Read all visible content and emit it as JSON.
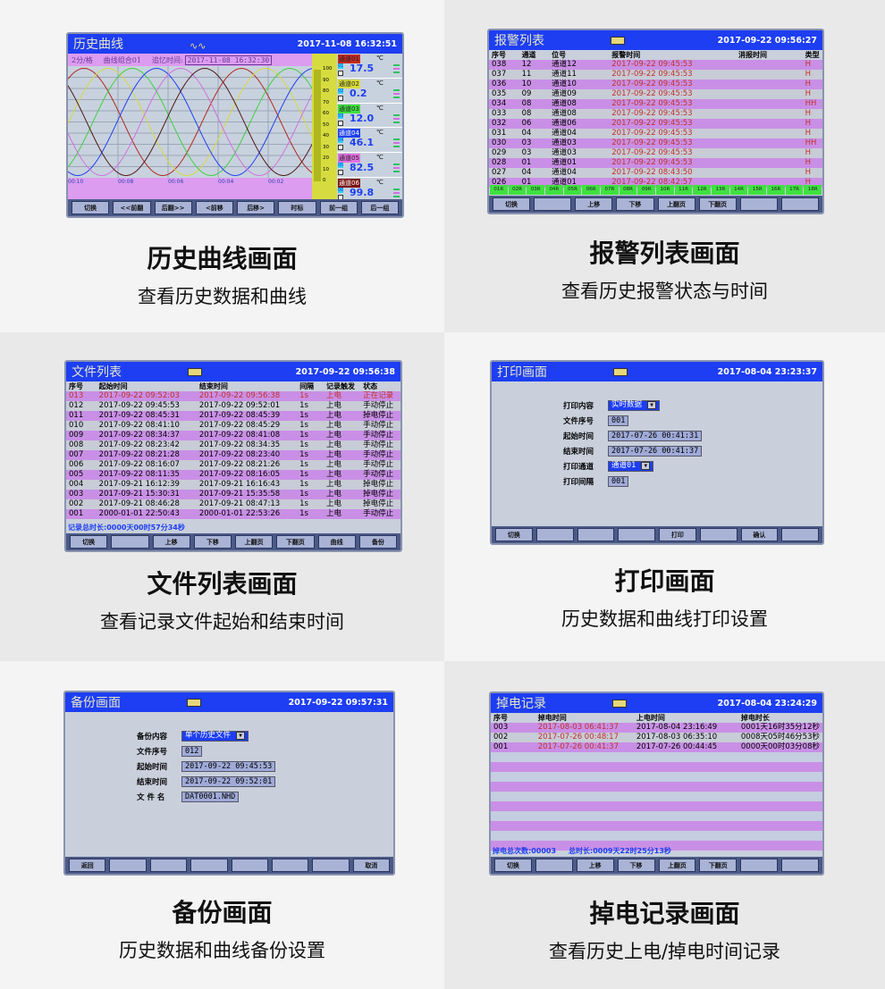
{
  "colors": {
    "header": "#1d3ef2",
    "row_purple": "#c98fe6",
    "row_gray": "#c8ccd6",
    "alarm_text": "#c0302a"
  },
  "panels": {
    "history": {
      "title": "历史曲线",
      "datetime": "2017-11-08 16:32:51",
      "scale": "2分/格",
      "group": "曲线组合01",
      "recall_label": "追忆时间:",
      "recall_time": "2017-11-08 16:32:30",
      "x_ticks": [
        "00:10",
        "00:08",
        "00:06",
        "00:04",
        "00:02"
      ],
      "y_ticks": [
        "100",
        "90",
        "80",
        "70",
        "60",
        "50",
        "40",
        "30",
        "20",
        "10",
        "0"
      ],
      "channels": [
        {
          "name": "通道01",
          "id": "01",
          "value": "17.5",
          "unit": "℃",
          "color": "#c42a20"
        },
        {
          "name": "通道02",
          "id": "02",
          "value": "0.2",
          "unit": "℃",
          "color": "#d8dc3c"
        },
        {
          "name": "通道03",
          "id": "03",
          "value": "12.0",
          "unit": "℃",
          "color": "#3fe03f"
        },
        {
          "name": "通道04",
          "id": "04",
          "value": "46.1",
          "unit": "℃",
          "color": "#2040f0"
        },
        {
          "name": "通道05",
          "id": "05",
          "value": "82.5",
          "unit": "℃",
          "color": "#e070e0"
        },
        {
          "name": "通道06",
          "id": "06",
          "value": "99.8",
          "unit": "℃",
          "color": "#7a1410"
        }
      ],
      "curve_colors": [
        "#b02a20",
        "#d8d840",
        "#40d040",
        "#2040f0",
        "#d070e0",
        "#501818"
      ],
      "buttons": [
        "切换",
        "<<前翻",
        "后翻>>",
        "<前移",
        "后移>",
        "时标",
        "前一组",
        "后一组"
      ],
      "caption": "历史曲线画面",
      "subcaption": "查看历史数据和曲线"
    },
    "alarm": {
      "title": "报警列表",
      "datetime": "2017-09-22 09:56:27",
      "headers": [
        "序号",
        "通道",
        "位号",
        "报警时间",
        "消报时间",
        "类型"
      ],
      "rows": [
        [
          "038",
          "12",
          "通道12",
          "2017-09-22 09:45:53",
          "",
          "H"
        ],
        [
          "037",
          "11",
          "通道11",
          "2017-09-22 09:45:53",
          "",
          "H"
        ],
        [
          "036",
          "10",
          "通道10",
          "2017-09-22 09:45:53",
          "",
          "H"
        ],
        [
          "035",
          "09",
          "通道09",
          "2017-09-22 09:45:53",
          "",
          "H"
        ],
        [
          "034",
          "08",
          "通道08",
          "2017-09-22 09:45:53",
          "",
          "HH"
        ],
        [
          "033",
          "08",
          "通道08",
          "2017-09-22 09:45:53",
          "",
          "H"
        ],
        [
          "032",
          "06",
          "通道06",
          "2017-09-22 09:45:53",
          "",
          "H"
        ],
        [
          "031",
          "04",
          "通道04",
          "2017-09-22 09:45:53",
          "",
          "H"
        ],
        [
          "030",
          "03",
          "通道03",
          "2017-09-22 09:45:53",
          "",
          "HH"
        ],
        [
          "029",
          "03",
          "通道03",
          "2017-09-22 09:45:53",
          "",
          "H"
        ],
        [
          "028",
          "01",
          "通道01",
          "2017-09-22 09:45:53",
          "",
          "H"
        ],
        [
          "027",
          "04",
          "通道04",
          "2017-09-22 08:43:50",
          "",
          "H"
        ],
        [
          "026",
          "01",
          "通道01",
          "2017-09-22 08:42:57",
          "",
          "H"
        ]
      ],
      "relays": [
        "01R",
        "02R",
        "03R",
        "04R",
        "05R",
        "06R",
        "07R",
        "08R",
        "09R",
        "10R",
        "11R",
        "12R",
        "13R",
        "14R",
        "15R",
        "16R",
        "17R",
        "18R"
      ],
      "buttons": [
        "切换",
        "",
        "上移",
        "下移",
        "上翻页",
        "下翻页",
        "",
        ""
      ],
      "caption": "报警列表画面",
      "subcaption": "查看历史报警状态与时间"
    },
    "files": {
      "title": "文件列表",
      "datetime": "2017-09-22 09:56:38",
      "headers": [
        "序号",
        "起始时间",
        "结束时间",
        "间隔",
        "记录触发",
        "状态"
      ],
      "rows": [
        [
          "013",
          "2017-09-22 09:52:03",
          "2017-09-22 09:56:38",
          "1s",
          "上电",
          "正在记录"
        ],
        [
          "012",
          "2017-09-22 09:45:53",
          "2017-09-22 09:52:01",
          "1s",
          "上电",
          "手动停止"
        ],
        [
          "011",
          "2017-09-22 08:45:31",
          "2017-09-22 08:45:39",
          "1s",
          "上电",
          "掉电停止"
        ],
        [
          "010",
          "2017-09-22 08:41:10",
          "2017-09-22 08:45:29",
          "1s",
          "上电",
          "手动停止"
        ],
        [
          "009",
          "2017-09-22 08:34:37",
          "2017-09-22 08:41:08",
          "1s",
          "上电",
          "手动停止"
        ],
        [
          "008",
          "2017-09-22 08:23:42",
          "2017-09-22 08:34:35",
          "1s",
          "上电",
          "手动停止"
        ],
        [
          "007",
          "2017-09-22 08:21:28",
          "2017-09-22 08:23:40",
          "1s",
          "上电",
          "手动停止"
        ],
        [
          "006",
          "2017-09-22 08:16:07",
          "2017-09-22 08:21:26",
          "1s",
          "上电",
          "手动停止"
        ],
        [
          "005",
          "2017-09-22 08:11:35",
          "2017-09-22 08:16:05",
          "1s",
          "上电",
          "手动停止"
        ],
        [
          "004",
          "2017-09-21 16:12:39",
          "2017-09-21 16:16:43",
          "1s",
          "上电",
          "掉电停止"
        ],
        [
          "003",
          "2017-09-21 15:30:31",
          "2017-09-21 15:35:58",
          "1s",
          "上电",
          "掉电停止"
        ],
        [
          "002",
          "2017-09-21 08:46:28",
          "2017-09-21 08:47:13",
          "1s",
          "上电",
          "掉电停止"
        ],
        [
          "001",
          "2000-01-01 22:50:43",
          "2000-01-01 22:53:26",
          "1s",
          "上电",
          "手动停止"
        ]
      ],
      "total": "记录总时长:0000天00时57分34秒",
      "buttons": [
        "切换",
        "",
        "上移",
        "下移",
        "上翻页",
        "下翻页",
        "曲线",
        "备份"
      ],
      "caption": "文件列表画面",
      "subcaption": "查看记录文件起始和结束时间"
    },
    "print": {
      "title": "打印画面",
      "datetime": "2017-08-04 23:23:37",
      "fields": [
        {
          "label": "打印内容",
          "value": "实时数据",
          "select": true
        },
        {
          "label": "文件序号",
          "value": "001"
        },
        {
          "label": "起始时间",
          "value": "2017-07-26 00:41:31"
        },
        {
          "label": "结束时间",
          "value": "2017-07-26 00:41:37"
        },
        {
          "label": "打印通道",
          "value": "通道01",
          "select": true
        },
        {
          "label": "打印间隔",
          "value": "001"
        }
      ],
      "buttons": [
        "切换",
        "",
        "",
        "",
        "打印",
        "",
        "确认",
        ""
      ],
      "caption": "打印画面",
      "subcaption": "历史数据和曲线打印设置"
    },
    "backup": {
      "title": "备份画面",
      "datetime": "2017-09-22 09:57:31",
      "fields": [
        {
          "label": "备份内容",
          "value": "单个历史文件",
          "select": true
        },
        {
          "label": "文件序号",
          "value": "012"
        },
        {
          "label": "起始时间",
          "value": "2017-09-22 09:45:53"
        },
        {
          "label": "结束时间",
          "value": "2017-09-22 09:52:01"
        },
        {
          "label": "文 件 名",
          "value": "DAT0001.NHD"
        }
      ],
      "buttons": [
        "返回",
        "",
        "",
        "",
        "",
        "",
        "",
        "取消"
      ],
      "caption": "备份画面",
      "subcaption": "历史数据和曲线备份设置"
    },
    "power": {
      "title": "掉电记录",
      "datetime": "2017-08-04 23:24:29",
      "headers": [
        "序号",
        "掉电时间",
        "上电时间",
        "掉电时长"
      ],
      "rows": [
        [
          "003",
          "2017-08-03 06:41:37",
          "2017-08-04 23:16:49",
          "0001天16时35分12秒"
        ],
        [
          "002",
          "2017-07-26 00:48:17",
          "2017-08-03 06:35:10",
          "0008天05时46分53秒"
        ],
        [
          "001",
          "2017-07-26 00:41:37",
          "2017-07-26 00:44:45",
          "0000天00时03分08秒"
        ]
      ],
      "summary_count": "掉电总次数:00003",
      "summary_total": "总时长:0009天22时25分13秒",
      "buttons": [
        "切换",
        "",
        "上移",
        "下移",
        "上翻页",
        "下翻页",
        "",
        ""
      ],
      "caption": "掉电记录画面",
      "subcaption": "查看历史上电/掉电时间记录"
    }
  }
}
